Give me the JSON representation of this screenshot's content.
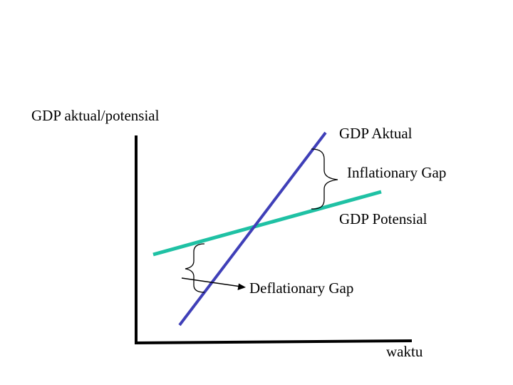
{
  "labels": {
    "y_axis": "GDP aktual/potensial",
    "x_axis": "waktu",
    "actual_line": "GDP Aktual",
    "potential_line": "GDP Potensial",
    "inflationary_gap": "Inflationary Gap",
    "deflationary_gap": "Deflationary Gap"
  },
  "colors": {
    "actual_line": "#3f3fb8",
    "potential_line": "#1fc1a4",
    "axes": "#000000",
    "braces": "#000000"
  }
}
